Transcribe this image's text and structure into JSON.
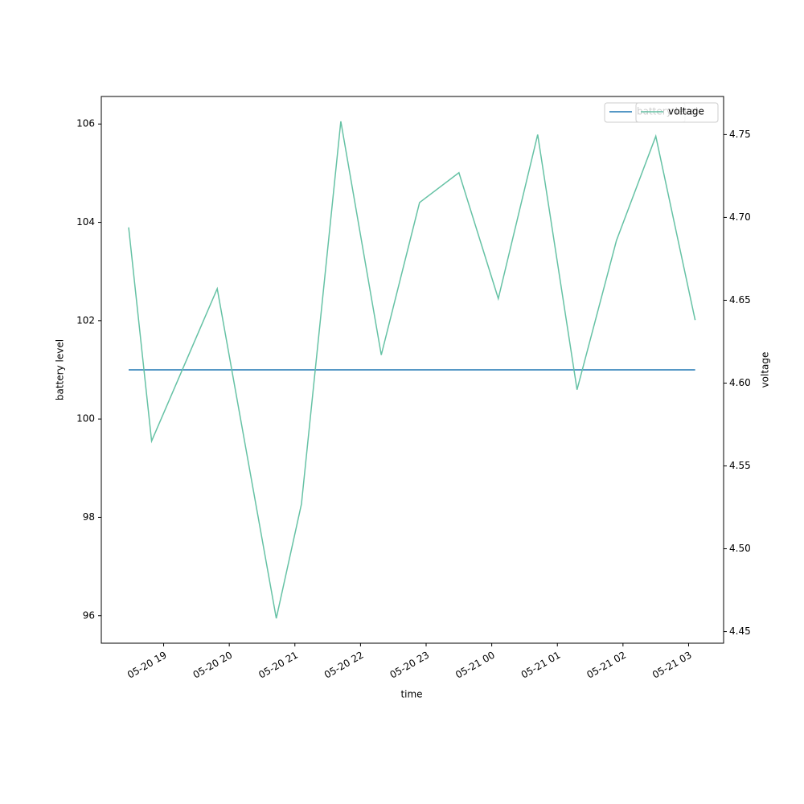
{
  "chart_data": {
    "type": "line",
    "xlabel": "time",
    "ylabel": "battery level",
    "y2label": "voltage",
    "x": [
      "05-20 18:28",
      "05-20 18:49",
      "05-20 19:49",
      "05-20 20:43",
      "05-20 21:06",
      "05-20 21:42",
      "05-20 22:19",
      "05-20 22:54",
      "05-20 23:30",
      "05-21 00:06",
      "05-21 00:42",
      "05-21 01:18",
      "05-21 01:54",
      "05-21 02:30",
      "05-21 03:06"
    ],
    "series": [
      {
        "name": "battery level",
        "color": "#1f77b4",
        "values": [
          101,
          101,
          101,
          101,
          101,
          101,
          101,
          101,
          101,
          101,
          101,
          101,
          101,
          101,
          101
        ]
      },
      {
        "name": "voltage",
        "color": "#66c2a5",
        "axis": "y2",
        "values": [
          4.694,
          4.565,
          4.657,
          4.458,
          4.527,
          4.758,
          4.617,
          4.709,
          4.727,
          4.651,
          4.75,
          4.596,
          4.686,
          4.749,
          4.638
        ]
      }
    ],
    "xlim": [
      "05-20 18:03",
      "05-21 03:32"
    ],
    "xticks": [
      "05-20 19",
      "05-20 20",
      "05-20 21",
      "05-20 22",
      "05-20 23",
      "05-21 00",
      "05-21 01",
      "05-21 02",
      "05-21 03"
    ],
    "ylim": [
      95.44,
      106.56
    ],
    "yticks": [
      96,
      98,
      100,
      102,
      104,
      106
    ],
    "y2lim": [
      4.443,
      4.773
    ],
    "y2ticks": [
      4.45,
      {
        "value": 4.5,
        "label": "4.50"
      },
      4.55,
      {
        "value": 4.6,
        "label": "4.60"
      },
      4.65,
      {
        "value": 4.7,
        "label": "4.70"
      },
      4.75
    ],
    "legend": "upper right",
    "grid": false
  }
}
